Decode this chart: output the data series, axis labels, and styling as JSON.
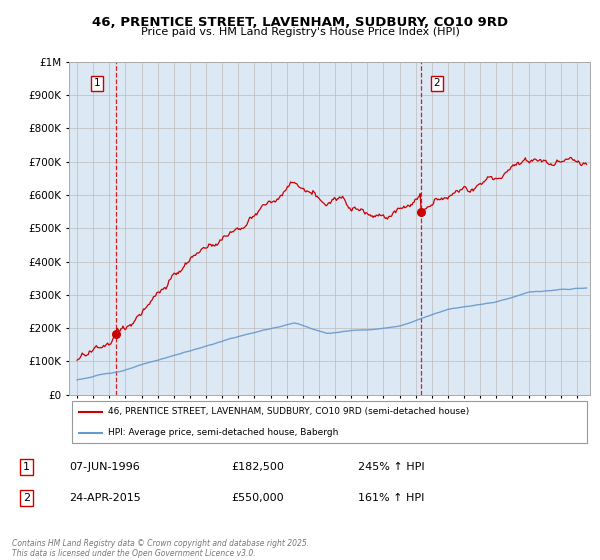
{
  "title": "46, PRENTICE STREET, LAVENHAM, SUDBURY, CO10 9RD",
  "subtitle": "Price paid vs. HM Land Registry's House Price Index (HPI)",
  "property_label": "46, PRENTICE STREET, LAVENHAM, SUDBURY, CO10 9RD (semi-detached house)",
  "hpi_label": "HPI: Average price, semi-detached house, Babergh",
  "footer": "Contains HM Land Registry data © Crown copyright and database right 2025.\nThis data is licensed under the Open Government Licence v3.0.",
  "annotation1_date": "07-JUN-1996",
  "annotation1_price": "£182,500",
  "annotation1_hpi": "245% ↑ HPI",
  "annotation2_date": "24-APR-2015",
  "annotation2_price": "£550,000",
  "annotation2_hpi": "161% ↑ HPI",
  "property_color": "#cc0000",
  "hpi_color": "#6699cc",
  "vline_color": "#cc0000",
  "point1_x": 1996.44,
  "point1_y": 182500,
  "point2_x": 2015.31,
  "point2_y": 550000,
  "ylim": [
    0,
    1000000
  ],
  "xlim_start": 1993.5,
  "xlim_end": 2025.8,
  "bg_color": "#dde8f5",
  "grid_color": "#bbbbbb"
}
